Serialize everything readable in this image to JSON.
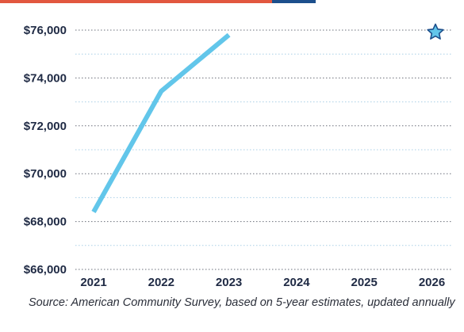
{
  "chart_data": {
    "type": "line",
    "x": [
      "2021",
      "2022",
      "2023",
      "2024",
      "2025",
      "2026"
    ],
    "series": [
      {
        "values": [
          68400,
          73450,
          75800,
          null,
          null,
          null
        ]
      }
    ],
    "y_ticks": [
      "$66,000",
      "$68,000",
      "$70,000",
      "$72,000",
      "$74,000",
      "$76,000"
    ],
    "y_tick_values": [
      66000,
      68000,
      70000,
      72000,
      74000,
      76000
    ],
    "ylim": [
      66000,
      76000
    ],
    "grid": true,
    "line_color": "#62c6ea",
    "grid_color_major": "#6a6f7a",
    "grid_color_minor": "#a9cfe6",
    "axis_text_color": "#1f2a44"
  },
  "source_note": "Source: American Community Survey, based on 5-year estimates, updated annually",
  "colors": {
    "topbar": [
      "#e2573f",
      "#1c4f8c"
    ],
    "star_stroke": "#1c4f8c",
    "star_fill": "#62c6ea"
  },
  "icons": {
    "star": "star-icon"
  }
}
